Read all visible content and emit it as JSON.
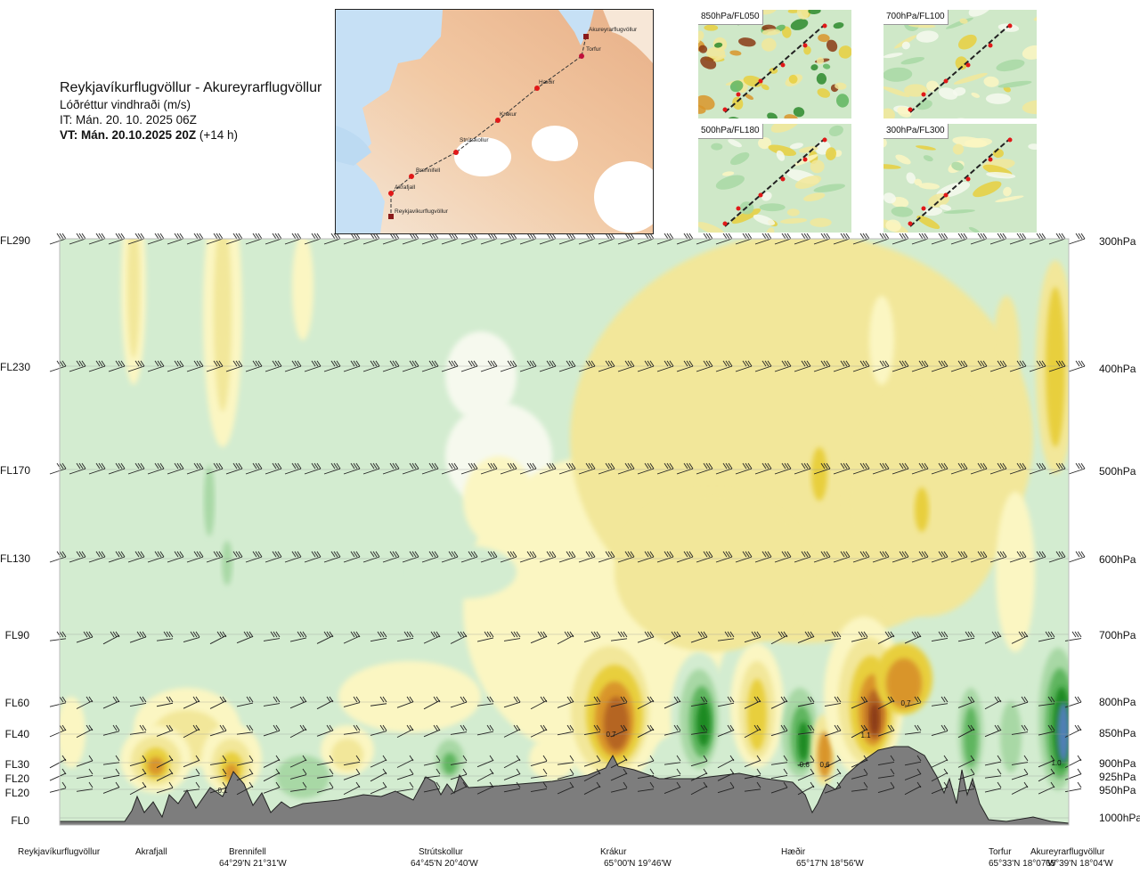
{
  "header": {
    "title": "Reykjavíkurflugvöllur - Akureyrarflugvöllur",
    "subtitle": "Lóðréttur vindhraði (m/s)",
    "issue_time": "IT: Mán. 20. 10. 2025 06Z",
    "valid_time": "VT: Mán. 20.10.2025 20Z",
    "lead_time": "(+14 h)"
  },
  "route_map": {
    "points": [
      "Akureyrarflugvöllur",
      "Torfur",
      "Hæðir",
      "Krákur",
      "Strútskollur",
      "Brennifell",
      "Akrafjall",
      "Reykjavíkurflugvöllur"
    ]
  },
  "panels": [
    {
      "label": "850hPa/FL050"
    },
    {
      "label": "700hPa/FL100"
    },
    {
      "label": "500hPa/FL180"
    },
    {
      "label": "300hPa/FL300"
    }
  ],
  "colors": {
    "strong_down": "#4f7fb5",
    "down_3": "#1e8a23",
    "down_2": "#5fb55f",
    "down_1": "#a8d8a5",
    "down_0": "#d3ecd0",
    "neutral": "#f6f9ee",
    "up_0": "#fbf6c2",
    "up_1": "#f2e79a",
    "up_2": "#e8cf3e",
    "up_3": "#d9952a",
    "up_4": "#b56520",
    "up_5": "#8a3a14",
    "terrain": "#7d7d7d"
  },
  "chart_data": {
    "type": "heatmap",
    "title": "Lóðréttur vindhraði (m/s)",
    "y_left_labels": [
      "FL290",
      "FL230",
      "FL170",
      "FL130",
      "FL90",
      "FL60",
      "FL40",
      "FL30",
      "FL20",
      "FL20",
      "FL0"
    ],
    "y_right_labels": [
      "300hPa",
      "400hPa",
      "500hPa",
      "600hPa",
      "700hPa",
      "800hPa",
      "850hPa",
      "900hPa",
      "925hPa",
      "950hPa",
      "1000hPa"
    ],
    "pressure_levels_hpa": [
      300,
      400,
      500,
      600,
      700,
      800,
      850,
      900,
      925,
      950,
      1000
    ],
    "waypoints": [
      {
        "name": "Reykjavíkurflugvöllur",
        "coord": ""
      },
      {
        "name": "Akrafjall",
        "coord": ""
      },
      {
        "name": "Brennifell",
        "coord": "64°29'N 21°31'W"
      },
      {
        "name": "Strútskollur",
        "coord": "64°45'N 20°40'W"
      },
      {
        "name": "Krákur",
        "coord": "65°00'N 19°46'W"
      },
      {
        "name": "Hæðir",
        "coord": "65°17'N 18°56'W"
      },
      {
        "name": "Torfur",
        "coord": "65°33'N 18°07'W"
      },
      {
        "name": "Akureyrarflugvöllur",
        "coord": "65°39'N 18°04'W"
      }
    ],
    "value_labels": [
      "0.1",
      "0.7",
      "-0.6",
      "0.6",
      "1.1",
      "0.7",
      "1.0"
    ]
  }
}
